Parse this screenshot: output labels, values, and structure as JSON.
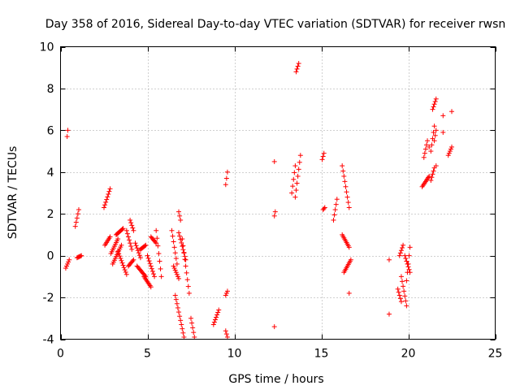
{
  "chart_data": {
    "type": "scatter",
    "title": "Day 358 of 2016, Sidereal Day-to-day VTEC variation (SDTVAR) for receiver rwsn",
    "xlabel": "GPS time / hours",
    "ylabel": "SDTVAR / TECUs",
    "xlim": [
      0,
      25
    ],
    "ylim": [
      -4,
      10
    ],
    "xticks": [
      0,
      5,
      10,
      15,
      20,
      25
    ],
    "yticks": [
      -4,
      -2,
      0,
      2,
      4,
      6,
      8,
      10
    ],
    "xtick_labels": [
      "0",
      "5",
      "10",
      "15",
      "20",
      "25"
    ],
    "ytick_labels": [
      "-4",
      "-2",
      "0",
      "2",
      "4",
      "6",
      "8",
      "10"
    ],
    "grid": true,
    "marker": "plus",
    "color": "#ff0000",
    "segments": [
      [
        0.3,
        -0.6,
        0.5,
        -0.2
      ],
      [
        0.38,
        5.7,
        0.42,
        6.0
      ],
      [
        0.85,
        1.4,
        1.05,
        2.2
      ],
      [
        0.95,
        -0.1,
        1.2,
        0.0
      ],
      [
        2.5,
        2.3,
        2.85,
        3.2
      ],
      [
        2.55,
        0.5,
        2.85,
        0.9
      ],
      [
        2.9,
        0.1,
        3.3,
        0.8
      ],
      [
        3.0,
        -0.4,
        3.5,
        0.5
      ],
      [
        3.2,
        1.0,
        3.6,
        1.3
      ],
      [
        3.3,
        0.2,
        3.8,
        -0.9
      ],
      [
        3.8,
        1.2,
        4.1,
        0.3
      ],
      [
        3.9,
        -0.5,
        4.2,
        -0.2
      ],
      [
        4.0,
        1.7,
        4.2,
        1.2
      ],
      [
        4.3,
        0.6,
        4.6,
        -0.1
      ],
      [
        4.4,
        -0.5,
        4.9,
        -1.0
      ],
      [
        4.6,
        0.3,
        4.9,
        0.5
      ],
      [
        4.8,
        -1.0,
        5.2,
        -1.5
      ],
      [
        5.0,
        0.0,
        5.4,
        -1.0
      ],
      [
        5.2,
        0.9,
        5.5,
        0.6
      ],
      [
        5.5,
        1.2,
        5.8,
        -1.0
      ],
      [
        6.4,
        1.2,
        6.7,
        -0.4
      ],
      [
        6.5,
        -0.5,
        6.8,
        -1.1
      ],
      [
        6.6,
        -1.9,
        7.1,
        -3.9
      ],
      [
        6.8,
        2.1,
        6.9,
        1.7
      ],
      [
        6.8,
        1.1,
        7.2,
        -0.2
      ],
      [
        7.0,
        0.8,
        7.4,
        -1.8
      ],
      [
        7.5,
        -3.0,
        7.7,
        -3.9
      ],
      [
        8.8,
        -3.3,
        9.1,
        -2.6
      ],
      [
        9.5,
        -1.9,
        9.6,
        -1.7
      ],
      [
        9.5,
        -3.6,
        9.6,
        -3.9
      ],
      [
        9.5,
        3.4,
        9.6,
        4.0
      ],
      [
        12.3,
        1.9,
        12.35,
        2.1
      ],
      [
        13.3,
        3.0,
        13.5,
        4.3
      ],
      [
        13.5,
        2.8,
        13.8,
        4.8
      ],
      [
        13.55,
        8.8,
        13.7,
        9.2
      ],
      [
        15.05,
        4.6,
        15.15,
        4.9
      ],
      [
        15.1,
        2.2,
        15.2,
        2.3
      ],
      [
        15.7,
        1.7,
        15.9,
        2.7
      ],
      [
        16.2,
        4.3,
        16.6,
        2.3
      ],
      [
        16.2,
        1.0,
        16.6,
        0.4
      ],
      [
        16.3,
        -0.8,
        16.7,
        -0.2
      ],
      [
        19.4,
        -1.6,
        19.6,
        -2.2
      ],
      [
        19.5,
        0.0,
        19.7,
        0.5
      ],
      [
        19.6,
        -1.0,
        19.9,
        -2.4
      ],
      [
        19.8,
        0.0,
        20.1,
        -0.8
      ],
      [
        19.9,
        -1.2,
        20.1,
        0.4
      ],
      [
        20.8,
        3.3,
        21.2,
        3.8
      ],
      [
        20.9,
        4.7,
        21.1,
        5.5
      ],
      [
        21.3,
        3.6,
        21.5,
        4.2
      ],
      [
        21.3,
        5.0,
        21.5,
        6.2
      ],
      [
        21.4,
        7.0,
        21.6,
        7.5
      ],
      [
        21.5,
        5.5,
        21.6,
        6.0
      ],
      [
        22.3,
        4.8,
        22.5,
        5.2
      ]
    ],
    "isolated_points": [
      [
        12.3,
        4.5
      ],
      [
        12.3,
        -3.4
      ],
      [
        16.6,
        -1.8
      ],
      [
        18.9,
        -0.2
      ],
      [
        18.9,
        -2.8
      ],
      [
        21.6,
        4.3
      ],
      [
        22.0,
        6.7
      ],
      [
        22.0,
        5.9
      ],
      [
        22.5,
        6.9
      ],
      [
        21.2,
        5.2
      ]
    ]
  }
}
